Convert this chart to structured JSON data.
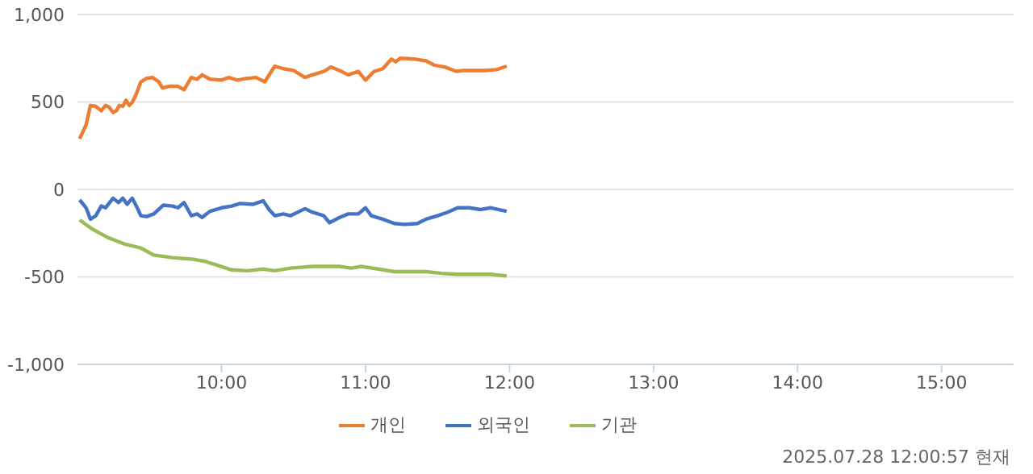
{
  "chart_data": {
    "type": "line",
    "xlim": [
      9,
      15.5
    ],
    "xticks": [
      {
        "value": 10,
        "label": "10:00"
      },
      {
        "value": 11,
        "label": "11:00"
      },
      {
        "value": 12,
        "label": "12:00"
      },
      {
        "value": 13,
        "label": "13:00"
      },
      {
        "value": 14,
        "label": "14:00"
      },
      {
        "value": 15,
        "label": "15:00"
      }
    ],
    "ylim": [
      -1000,
      1000
    ],
    "yticks": [
      {
        "value": -1000,
        "label": "-1,000"
      },
      -500,
      0,
      500,
      {
        "value": 1000,
        "label": "1,000"
      }
    ],
    "grid": "y",
    "legend": "bottom",
    "marker": "none",
    "line_style": "solid",
    "annotations": [
      "2025.07.28 12:00:57 현재"
    ],
    "series": [
      {
        "name": "개인",
        "color": "#ed7d31",
        "x": [
          9.015,
          9.06,
          9.09,
          9.127,
          9.165,
          9.195,
          9.22,
          9.247,
          9.27,
          9.29,
          9.315,
          9.337,
          9.36,
          9.382,
          9.408,
          9.44,
          9.48,
          9.52,
          9.565,
          9.59,
          9.64,
          9.697,
          9.74,
          9.79,
          9.83,
          9.865,
          9.92,
          10.0,
          10.05,
          10.11,
          10.18,
          10.24,
          10.3,
          10.37,
          10.43,
          10.5,
          10.58,
          10.63,
          10.71,
          10.76,
          10.82,
          10.88,
          10.95,
          11.0,
          11.06,
          11.12,
          11.18,
          11.21,
          11.24,
          11.345,
          11.42,
          11.48,
          11.55,
          11.63,
          11.68,
          11.76,
          11.83,
          11.91,
          11.98
        ],
        "values": [
          290,
          370,
          480,
          475,
          450,
          480,
          470,
          440,
          450,
          480,
          475,
          510,
          480,
          500,
          545,
          615,
          635,
          640,
          615,
          580,
          590,
          590,
          570,
          640,
          630,
          655,
          630,
          625,
          640,
          625,
          635,
          640,
          615,
          705,
          690,
          680,
          640,
          655,
          675,
          700,
          680,
          655,
          675,
          625,
          675,
          690,
          745,
          730,
          750,
          745,
          735,
          710,
          700,
          675,
          680,
          680,
          680,
          685,
          705
        ]
      },
      {
        "name": "외국인",
        "color": "#4472c4",
        "x": [
          9.015,
          9.06,
          9.09,
          9.127,
          9.165,
          9.195,
          9.247,
          9.285,
          9.315,
          9.345,
          9.38,
          9.415,
          9.44,
          9.48,
          9.53,
          9.595,
          9.66,
          9.697,
          9.74,
          9.79,
          9.83,
          9.865,
          9.92,
          10.0,
          10.07,
          10.13,
          10.22,
          10.29,
          10.33,
          10.37,
          10.43,
          10.48,
          10.58,
          10.63,
          10.71,
          10.75,
          10.82,
          10.88,
          10.95,
          11.0,
          11.04,
          11.12,
          11.2,
          11.27,
          11.36,
          11.42,
          11.5,
          11.57,
          11.64,
          11.72,
          11.8,
          11.87,
          11.98
        ],
        "values": [
          -60,
          -105,
          -170,
          -150,
          -95,
          -105,
          -50,
          -75,
          -50,
          -85,
          -50,
          -105,
          -150,
          -155,
          -140,
          -90,
          -95,
          -105,
          -75,
          -150,
          -140,
          -160,
          -125,
          -105,
          -95,
          -80,
          -85,
          -65,
          -115,
          -150,
          -140,
          -150,
          -110,
          -130,
          -150,
          -190,
          -160,
          -140,
          -140,
          -105,
          -150,
          -170,
          -195,
          -200,
          -195,
          -170,
          -150,
          -130,
          -105,
          -105,
          -115,
          -105,
          -125
        ]
      },
      {
        "name": "기관",
        "color": "#9bbb59",
        "x": [
          9.015,
          9.1,
          9.21,
          9.32,
          9.44,
          9.53,
          9.66,
          9.81,
          9.88,
          9.96,
          10.07,
          10.18,
          10.29,
          10.37,
          10.48,
          10.63,
          10.82,
          10.9,
          10.97,
          11.09,
          11.2,
          11.31,
          11.42,
          11.53,
          11.64,
          11.76,
          11.87,
          11.98
        ],
        "values": [
          -175,
          -225,
          -275,
          -310,
          -335,
          -375,
          -390,
          -400,
          -410,
          -430,
          -460,
          -465,
          -455,
          -465,
          -450,
          -440,
          -440,
          -450,
          -440,
          -455,
          -470,
          -470,
          -470,
          -480,
          -485,
          -485,
          -485,
          -495
        ]
      }
    ]
  }
}
